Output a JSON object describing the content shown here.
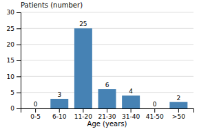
{
  "chart_data": {
    "type": "bar",
    "ylabel": "Patients (number)",
    "xlabel": "Age (years)",
    "categories": [
      "0-5",
      "6-10",
      "11-20",
      "21-30",
      "31-40",
      "41-50",
      ">50"
    ],
    "values": [
      0,
      3,
      25,
      6,
      4,
      0,
      2
    ],
    "ylim": [
      0,
      30
    ],
    "yticks": [
      0,
      5,
      10,
      15,
      20,
      25,
      30
    ],
    "grid": true,
    "data_labels": true
  }
}
